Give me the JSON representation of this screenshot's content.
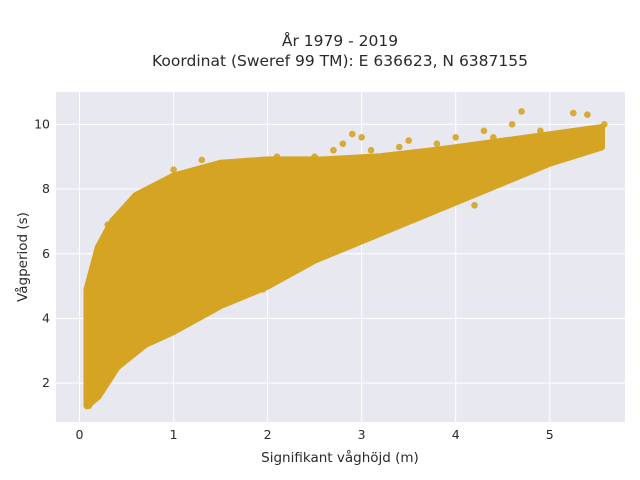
{
  "chart_data": {
    "type": "scatter",
    "title_lines": [
      "År 1979 - 2019",
      "Koordinat (Sweref 99 TM): E 636623, N 6387155"
    ],
    "xlabel": "Signifikant våghöjd (m)",
    "ylabel": "Vågperiod (s)",
    "xlim": [
      -0.25,
      5.8
    ],
    "ylim": [
      0.8,
      11
    ],
    "xticks": [
      0,
      1,
      2,
      3,
      4,
      5
    ],
    "yticks": [
      2,
      4,
      6,
      8,
      10
    ],
    "grid": true,
    "colors": {
      "marker": "#d4a422",
      "plot_background": "#e8e8f0",
      "grid": "#ffffff",
      "paper": "#ffffff"
    },
    "series": [
      {
        "points": [
          [
            0.1,
            1.3
          ],
          [
            0.12,
            1.6
          ],
          [
            0.08,
            2.0
          ],
          [
            0.15,
            2.5
          ],
          [
            0.1,
            3.0
          ],
          [
            0.12,
            3.6
          ],
          [
            0.08,
            4.9
          ],
          [
            0.18,
            5.8
          ],
          [
            0.22,
            6.2
          ],
          [
            0.3,
            6.9
          ],
          [
            0.25,
            2.2
          ],
          [
            0.3,
            2.8
          ],
          [
            0.35,
            3.2
          ],
          [
            0.4,
            4.5
          ],
          [
            0.45,
            5.5
          ],
          [
            0.5,
            6.5
          ],
          [
            0.55,
            7.4
          ],
          [
            0.45,
            3.0
          ],
          [
            0.6,
            3.3
          ],
          [
            0.7,
            4.0
          ],
          [
            0.8,
            7.9
          ],
          [
            0.9,
            8.2
          ],
          [
            0.95,
            7.6
          ],
          [
            1.0,
            8.6
          ],
          [
            1.05,
            7.2
          ],
          [
            0.9,
            3.8
          ],
          [
            1.0,
            4.2
          ],
          [
            1.1,
            4.6
          ],
          [
            1.2,
            8.4
          ],
          [
            1.3,
            8.9
          ],
          [
            1.4,
            8.5
          ],
          [
            1.5,
            8.8
          ],
          [
            1.4,
            4.8
          ],
          [
            1.55,
            5.2
          ],
          [
            1.7,
            5.4
          ],
          [
            1.8,
            8.3
          ],
          [
            1.9,
            8.6
          ],
          [
            2.0,
            8.9
          ],
          [
            2.1,
            9.0
          ],
          [
            2.2,
            8.7
          ],
          [
            1.95,
            4.9
          ],
          [
            2.05,
            5.6
          ],
          [
            2.2,
            6.0
          ],
          [
            2.3,
            6.3
          ],
          [
            2.5,
            9.0
          ],
          [
            2.6,
            8.8
          ],
          [
            2.4,
            6.4
          ],
          [
            2.55,
            6.6
          ],
          [
            2.7,
            9.2
          ],
          [
            2.8,
            9.4
          ],
          [
            2.9,
            9.7
          ],
          [
            2.75,
            6.5
          ],
          [
            2.9,
            6.8
          ],
          [
            3.0,
            9.6
          ],
          [
            3.1,
            9.2
          ],
          [
            3.2,
            8.8
          ],
          [
            3.05,
            7.0
          ],
          [
            3.2,
            7.2
          ],
          [
            3.3,
            6.9
          ],
          [
            3.4,
            9.3
          ],
          [
            3.5,
            9.5
          ],
          [
            3.6,
            9.0
          ],
          [
            3.55,
            7.5
          ],
          [
            3.7,
            7.8
          ],
          [
            3.8,
            9.4
          ],
          [
            3.9,
            9.2
          ],
          [
            3.75,
            7.9
          ],
          [
            3.85,
            8.0
          ],
          [
            4.0,
            9.6
          ],
          [
            4.1,
            9.0
          ],
          [
            4.2,
            8.3
          ],
          [
            3.95,
            8.1
          ],
          [
            4.1,
            8.4
          ],
          [
            4.2,
            7.5
          ],
          [
            4.3,
            9.8
          ],
          [
            4.4,
            9.6
          ],
          [
            4.5,
            9.4
          ],
          [
            4.35,
            8.6
          ],
          [
            4.5,
            8.8
          ],
          [
            4.6,
            10.0
          ],
          [
            4.7,
            10.4
          ],
          [
            4.65,
            9.2
          ],
          [
            4.75,
            8.9
          ],
          [
            4.8,
            9.5
          ],
          [
            4.9,
            9.8
          ],
          [
            5.0,
            9.3
          ],
          [
            5.05,
            9.6
          ],
          [
            5.1,
            9.1
          ],
          [
            5.2,
            9.7
          ],
          [
            5.25,
            10.35
          ],
          [
            5.3,
            9.8
          ],
          [
            5.4,
            10.3
          ],
          [
            5.45,
            9.3
          ],
          [
            5.58,
            10.0
          ]
        ]
      }
    ]
  }
}
